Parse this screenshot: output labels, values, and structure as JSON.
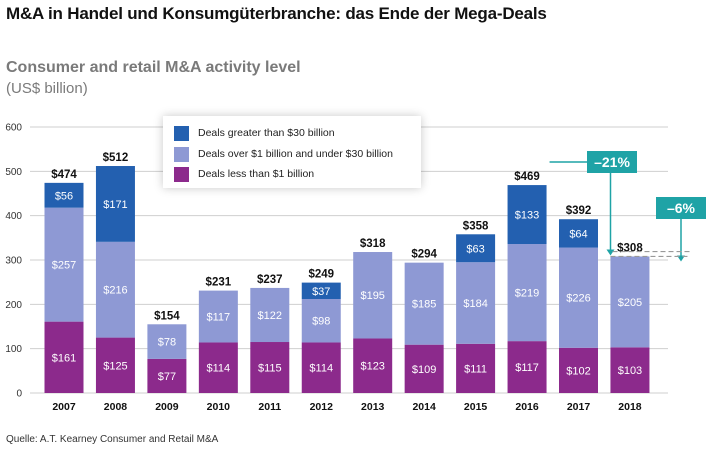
{
  "title": "M&A in Handel und Konsumgüterbranche: das Ende der Mega-Deals",
  "source": "Quelle: A.T. Kearney Consumer and Retail M&A",
  "callouts": {
    "change_2017": "–21%",
    "change_2018": "–6%",
    "callout_color": "#1fa3a6"
  },
  "chart_data": {
    "type": "bar",
    "stacked": true,
    "title": "Consumer and retail M&A activity level",
    "ylabel": "(US$ billion)",
    "ylim": [
      0,
      600
    ],
    "yticks": [
      "0",
      "100",
      "200",
      "300",
      "400",
      "500",
      "600"
    ],
    "grid": true,
    "legend_position": "top-left",
    "categories": [
      "2007",
      "2008",
      "2009",
      "2010",
      "2011",
      "2012",
      "2013",
      "2014",
      "2015",
      "2016",
      "2017",
      "2018"
    ],
    "totals": [
      474,
      512,
      154,
      231,
      237,
      249,
      318,
      294,
      358,
      469,
      392,
      308
    ],
    "total_labels": [
      "$474",
      "$512",
      "$154",
      "$231",
      "$237",
      "$249",
      "$318",
      "$294",
      "$358",
      "$469",
      "$392",
      "$308"
    ],
    "series": [
      {
        "name": "Deals less than $1 billion",
        "color": "#8c2a8c",
        "values": [
          161,
          125,
          77,
          114,
          115,
          114,
          123,
          109,
          111,
          117,
          102,
          103
        ],
        "labels": [
          "$161",
          "$125",
          "$77",
          "$114",
          "$115",
          "$114",
          "$123",
          "$109",
          "$111",
          "$117",
          "$102",
          "$103"
        ]
      },
      {
        "name": "Deals over $1 billion  and under $30 billion",
        "color": "#8e99d4",
        "values": [
          257,
          216,
          78,
          117,
          122,
          98,
          195,
          185,
          184,
          219,
          226,
          205
        ],
        "labels": [
          "$257",
          "$216",
          "$78",
          "$117",
          "$122",
          "$98",
          "$195",
          "$185",
          "$184",
          "$219",
          "$226",
          "$205"
        ]
      },
      {
        "name": "Deals greater than $30 billion",
        "color": "#2360b0",
        "values": [
          56,
          171,
          0,
          0,
          0,
          37,
          0,
          0,
          63,
          133,
          64,
          0
        ],
        "labels": [
          "$56",
          "$171",
          "",
          "",
          "",
          "$37",
          "",
          "",
          "$63",
          "$133",
          "$64",
          ""
        ]
      }
    ]
  }
}
